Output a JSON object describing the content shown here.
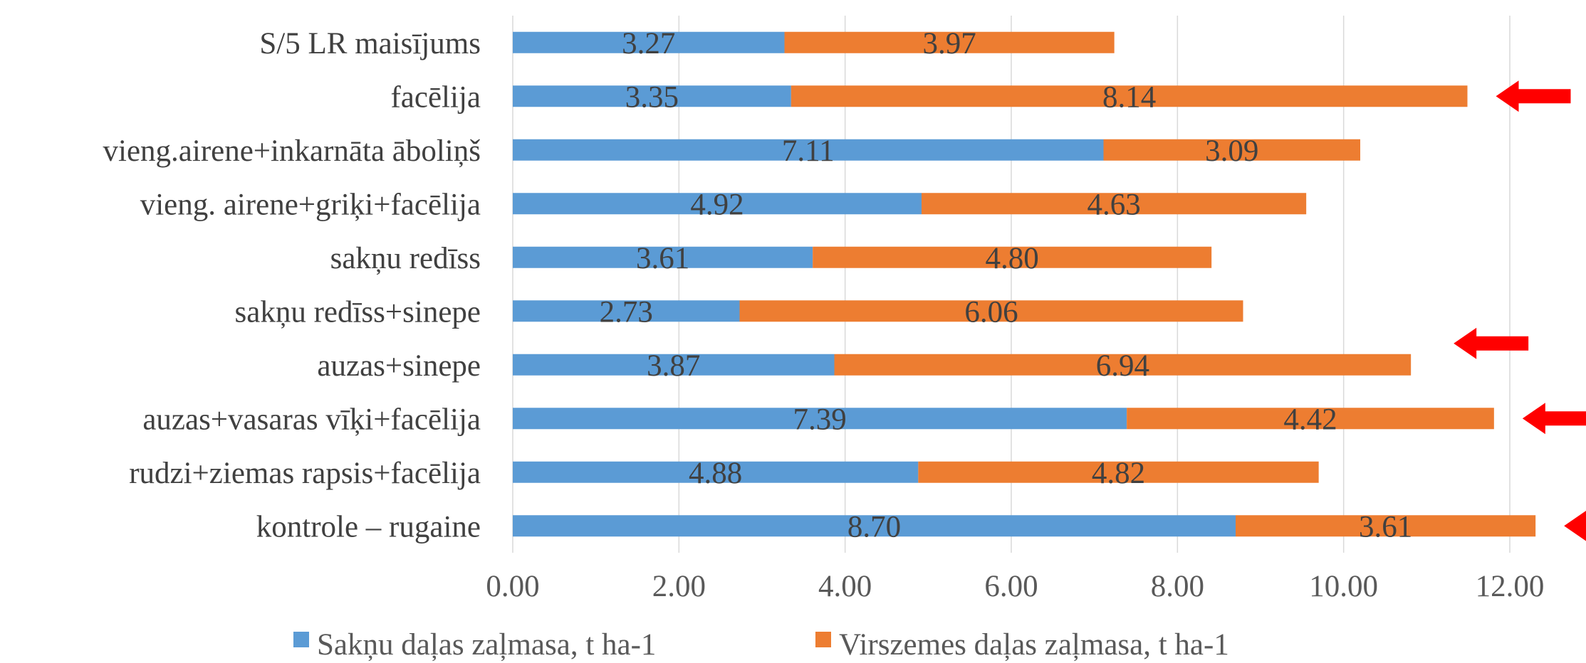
{
  "chart_data": {
    "type": "bar",
    "orientation": "horizontal",
    "stacked": true,
    "title": "",
    "xlabel": "",
    "ylabel": "",
    "categories": [
      "kontrole – rugaine",
      "rudzi+ziemas rapsis+facēlija",
      "auzas+vasaras vīķi+facēlija",
      "auzas+sinepe",
      "sakņu redīss+sinepe",
      "sakņu redīss",
      "vieng. airene+griķi+facēlija",
      "vieng.airene+inkarnāta āboliņš",
      "facēlija",
      "S/5 LR maisījums"
    ],
    "series": [
      {
        "name": "Sakņu daļas zaļmasa, t ha-1",
        "color": "#5b9bd5",
        "values": [
          8.7,
          4.88,
          7.39,
          3.87,
          2.73,
          3.61,
          4.92,
          7.11,
          3.35,
          3.27
        ],
        "labels": [
          "8.70",
          "4.88",
          "7.39",
          "3.87",
          "2.73",
          "3.61",
          "4.92",
          "7.11",
          "3.35",
          "3.27"
        ]
      },
      {
        "name": "Virszemes daļas zaļmasa, t ha-1",
        "color": "#ed7d31",
        "values": [
          3.61,
          4.82,
          4.42,
          6.94,
          6.06,
          4.8,
          4.63,
          3.09,
          8.14,
          3.97
        ],
        "labels": [
          "3.61",
          "4.82",
          "4.42",
          "6.94",
          "6.06",
          "4.80",
          "4.63",
          "3.09",
          "8.14",
          "3.97"
        ]
      }
    ],
    "xlim": [
      0,
      12
    ],
    "xticks": [
      "0.00",
      "2.00",
      "4.00",
      "6.00",
      "8.00",
      "10.00",
      "12.00"
    ],
    "grid": true,
    "legend_position": "bottom",
    "annotations": {
      "arrow_color": "#ff0000",
      "highlighted_categories": [
        "facēlija",
        "auzas+sinepe",
        "auzas+vasaras vīķi+facēlija",
        "kontrole – rugaine"
      ]
    }
  }
}
